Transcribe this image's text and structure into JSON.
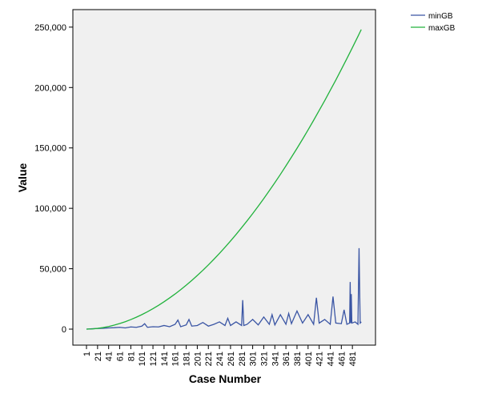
{
  "chart_data": {
    "type": "line",
    "xlabel": "Case Number",
    "ylabel": "Value",
    "x": [
      1,
      11,
      21,
      31,
      41,
      51,
      61,
      71,
      81,
      91,
      101,
      111,
      121,
      131,
      141,
      151,
      161,
      171,
      181,
      191,
      201,
      211,
      221,
      231,
      241,
      251,
      261,
      271,
      281,
      291,
      301,
      311,
      321,
      331,
      341,
      351,
      361,
      371,
      381,
      391,
      401,
      411,
      421,
      431,
      441,
      451,
      461,
      471,
      481,
      491,
      497
    ],
    "series": [
      {
        "name": "minGB",
        "color": "#3a55a4",
        "x": [
          1,
          11,
          21,
          31,
          41,
          51,
          61,
          71,
          81,
          91,
          101,
          106,
          111,
          121,
          131,
          141,
          151,
          161,
          166,
          171,
          181,
          186,
          191,
          201,
          211,
          221,
          231,
          241,
          251,
          256,
          261,
          271,
          281,
          283,
          285,
          291,
          301,
          311,
          321,
          331,
          336,
          341,
          351,
          361,
          366,
          371,
          381,
          391,
          401,
          411,
          416,
          421,
          431,
          441,
          446,
          451,
          461,
          466,
          471,
          476,
          477,
          478,
          479,
          480,
          486,
          491,
          493,
          495,
          497
        ],
        "values": [
          0,
          300,
          500,
          700,
          1000,
          1200,
          1500,
          1000,
          1800,
          1500,
          2500,
          4500,
          1500,
          2000,
          1800,
          3000,
          2000,
          4000,
          7500,
          2000,
          3500,
          8000,
          2500,
          3000,
          5500,
          2500,
          4000,
          6000,
          3000,
          9000,
          3000,
          6000,
          3000,
          24000,
          3000,
          4000,
          8000,
          3500,
          10000,
          4000,
          12000,
          3500,
          12000,
          4000,
          13000,
          4500,
          15000,
          5000,
          12000,
          4000,
          26000,
          5000,
          8000,
          4000,
          27000,
          5000,
          4500,
          16000,
          4000,
          5000,
          39000,
          5000,
          29000,
          5000,
          6000,
          4000,
          67000,
          5000,
          6000
        ]
      },
      {
        "name": "maxGB",
        "color": "#21b23c",
        "values": [
          0,
          177,
          608,
          1275,
          2165,
          3279,
          4608,
          6151,
          7899,
          9846,
          12003,
          14359,
          16938,
          19691,
          22642,
          25817,
          29115,
          32662,
          36382,
          40300,
          44417,
          48682,
          53171,
          57834,
          62694,
          67729,
          72937,
          78368,
          83973,
          89702,
          95629,
          101754,
          108029,
          114601,
          121198,
          128067,
          135160,
          142377,
          149668,
          157182,
          164920,
          172856,
          180990,
          189150,
          197631,
          206113,
          214966,
          223944,
          233046,
          242321,
          248000
        ]
      }
    ],
    "xlim": [
      -23.6,
      522.7
    ],
    "xticks": [
      1,
      21,
      41,
      61,
      81,
      101,
      121,
      141,
      161,
      181,
      201,
      221,
      241,
      261,
      281,
      301,
      321,
      341,
      361,
      381,
      401,
      421,
      441,
      461,
      481
    ],
    "ylim": [
      -13260,
      264500
    ],
    "yticks": [
      0,
      {
        "value": 50000,
        "label": "50,000"
      },
      {
        "value": 100000,
        "label": "100,000"
      },
      {
        "value": 150000,
        "label": "150,000"
      },
      {
        "value": 200000,
        "label": "200,000"
      },
      {
        "value": 250000,
        "label": "250,000"
      }
    ],
    "plot_background": "#f0f0f0"
  }
}
